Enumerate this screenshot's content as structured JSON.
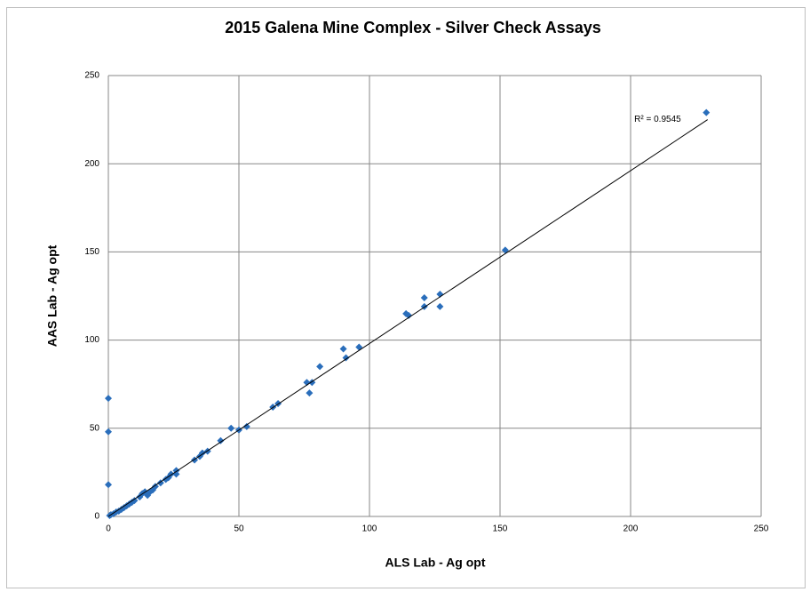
{
  "chart_data": {
    "type": "scatter",
    "title": "2015 Galena Mine Complex - Silver Check Assays",
    "x_label": "ALS Lab - Ag opt",
    "y_label": "AAS Lab - Ag opt",
    "x": [
      0,
      0,
      0,
      0.5,
      1,
      2,
      3,
      4,
      5,
      6,
      7,
      8,
      9,
      10,
      12,
      13,
      14,
      15,
      16,
      17,
      18,
      20,
      22,
      23,
      24,
      26,
      26,
      33,
      35,
      36,
      38,
      43,
      47,
      50,
      53,
      63,
      65,
      76,
      77,
      78,
      81,
      90,
      91,
      96,
      114,
      115,
      121,
      121,
      127,
      127,
      152,
      229
    ],
    "values": [
      67,
      48,
      18,
      0.5,
      1,
      1.5,
      2.5,
      3,
      4,
      5,
      6,
      7,
      8,
      9,
      11,
      13,
      14,
      12,
      14,
      15,
      17,
      19,
      21,
      22,
      24,
      24,
      26,
      32,
      34,
      36,
      37,
      43,
      50,
      49,
      51,
      62,
      64,
      76,
      70,
      76,
      85,
      95,
      90,
      96,
      115,
      114,
      124,
      119,
      126,
      119,
      151,
      229
    ],
    "color": "#2a6ebb",
    "trendline": {
      "x": [
        0,
        229.5
      ],
      "y": [
        0,
        225
      ],
      "label": "R² = 0.9545",
      "color": "#000000"
    },
    "xlim": [
      0,
      250
    ],
    "xticks": [
      0,
      50,
      100,
      150,
      200,
      250
    ],
    "ylim": [
      0,
      250
    ],
    "yticks": [
      0,
      50,
      100,
      150,
      200,
      250
    ],
    "grid": true
  }
}
